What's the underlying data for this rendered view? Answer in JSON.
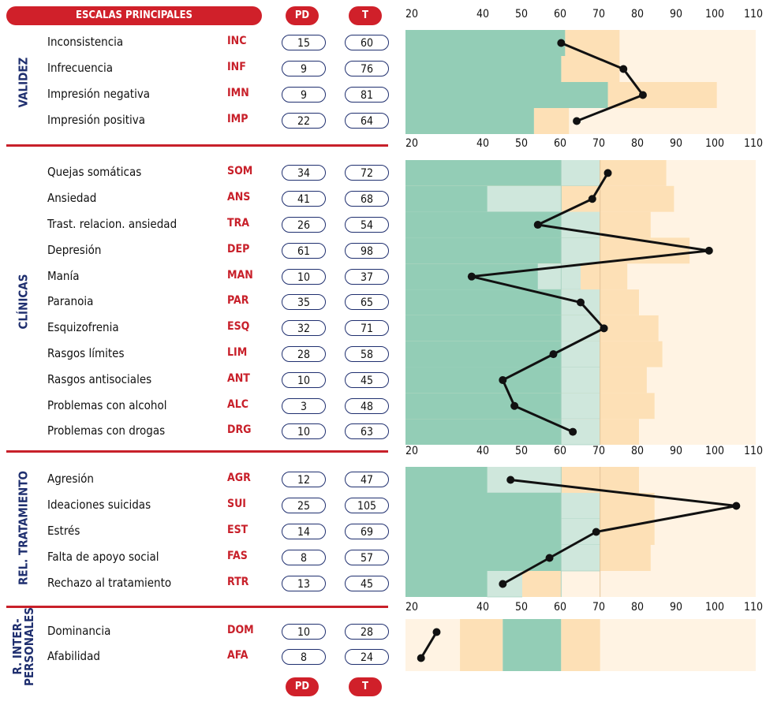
{
  "header": {
    "title": "ESCALAS PRINCIPALES",
    "pd_label": "PD",
    "t_label": "T"
  },
  "footer": {
    "pd_label": "PD",
    "t_label": "T"
  },
  "sections": [
    {
      "label": "VALIDEZ",
      "rows": [
        {
          "name": "Inconsistencia",
          "abbr": "INC",
          "pd": "15",
          "t": "60"
        },
        {
          "name": "Infrecuencia",
          "abbr": "INF",
          "pd": "9",
          "t": "76"
        },
        {
          "name": "Impresión negativa",
          "abbr": "IMN",
          "pd": "9",
          "t": "81"
        },
        {
          "name": "Impresión positiva",
          "abbr": "IMP",
          "pd": "22",
          "t": "64"
        }
      ]
    },
    {
      "label": "CLÍNICAS",
      "rows": [
        {
          "name": "Quejas somáticas",
          "abbr": "SOM",
          "pd": "34",
          "t": "72"
        },
        {
          "name": "Ansiedad",
          "abbr": "ANS",
          "pd": "41",
          "t": "68"
        },
        {
          "name": "Trast. relacion. ansiedad",
          "abbr": "TRA",
          "pd": "26",
          "t": "54"
        },
        {
          "name": "Depresión",
          "abbr": "DEP",
          "pd": "61",
          "t": "98"
        },
        {
          "name": "Manía",
          "abbr": "MAN",
          "pd": "10",
          "t": "37"
        },
        {
          "name": "Paranoia",
          "abbr": "PAR",
          "pd": "35",
          "t": "65"
        },
        {
          "name": "Esquizofrenia",
          "abbr": "ESQ",
          "pd": "32",
          "t": "71"
        },
        {
          "name": "Rasgos límites",
          "abbr": "LIM",
          "pd": "28",
          "t": "58"
        },
        {
          "name": "Rasgos antisociales",
          "abbr": "ANT",
          "pd": "10",
          "t": "45"
        },
        {
          "name": "Problemas con alcohol",
          "abbr": "ALC",
          "pd": "3",
          "t": "48"
        },
        {
          "name": "Problemas con drogas",
          "abbr": "DRG",
          "pd": "10",
          "t": "63"
        }
      ]
    },
    {
      "label": "REL. TRATAMIENTO",
      "rows": [
        {
          "name": "Agresión",
          "abbr": "AGR",
          "pd": "12",
          "t": "47"
        },
        {
          "name": "Ideaciones suicidas",
          "abbr": "SUI",
          "pd": "25",
          "t": "105"
        },
        {
          "name": "Estrés",
          "abbr": "EST",
          "pd": "14",
          "t": "69"
        },
        {
          "name": "Falta de apoyo social",
          "abbr": "FAS",
          "pd": "8",
          "t": "57"
        },
        {
          "name": "Rechazo al tratamiento",
          "abbr": "RTR",
          "pd": "13",
          "t": "45"
        }
      ]
    },
    {
      "label": "R. INTER-PERSONALES",
      "label_lines": [
        "R. INTER-",
        "PERSONALES"
      ],
      "rows": [
        {
          "name": "Dominancia",
          "abbr": "DOM",
          "pd": "10",
          "t": "28"
        },
        {
          "name": "Afabilidad",
          "abbr": "AFA",
          "pd": "8",
          "t": "24"
        }
      ]
    }
  ],
  "colors": {
    "accent": "#c8202a",
    "navy": "#1f2f6f",
    "green": "#93cdb6",
    "light_green": "#cfe7dc",
    "peach": "#fde0b6",
    "cream": "#fff3e3"
  },
  "chart_data": {
    "type": "line",
    "x_ticks": [
      "20",
      "40",
      "50",
      "60",
      "70",
      "80",
      "90",
      "100",
      "110"
    ],
    "xlim": [
      20,
      110
    ],
    "panels": [
      {
        "section": "VALIDEZ",
        "categories": [
          "INC",
          "INF",
          "IMN",
          "IMP"
        ],
        "t_values": [
          60,
          76,
          81,
          64
        ],
        "green_end": [
          61,
          60,
          72,
          53
        ],
        "peach_end": [
          75,
          75,
          100,
          62
        ]
      },
      {
        "section": "CLÍNICAS",
        "categories": [
          "SOM",
          "ANS",
          "TRA",
          "DEP",
          "MAN",
          "PAR",
          "ESQ",
          "LIM",
          "ANT",
          "ALC",
          "DRG"
        ],
        "t_values": [
          72,
          68,
          54,
          98,
          37,
          65,
          71,
          58,
          45,
          48,
          63
        ],
        "green_end": [
          60,
          41,
          60,
          60,
          54,
          60,
          60,
          60,
          60,
          60,
          60
        ],
        "light_green_end": [
          70,
          60,
          70,
          70,
          65,
          70,
          70,
          70,
          70,
          70,
          70
        ],
        "peach_end": [
          87,
          89,
          83,
          93,
          77,
          80,
          85,
          86,
          82,
          84,
          80
        ]
      },
      {
        "section": "REL. TRATAMIENTO",
        "categories": [
          "AGR",
          "SUI",
          "EST",
          "FAS",
          "RTR"
        ],
        "t_values": [
          47,
          105,
          69,
          57,
          45
        ],
        "green_end": [
          41,
          60,
          60,
          60,
          41
        ],
        "light_green_end": [
          60,
          70,
          70,
          70,
          50
        ],
        "peach_end": [
          80,
          84,
          84,
          83,
          60
        ]
      },
      {
        "section": "R. INTER-PERSONALES",
        "categories": [
          "DOM",
          "AFA"
        ],
        "t_values": [
          28,
          24
        ],
        "band_cream_end": 34,
        "band_peach_end": 45,
        "band_green_end": 60,
        "band_peach2_end": 70
      }
    ]
  }
}
